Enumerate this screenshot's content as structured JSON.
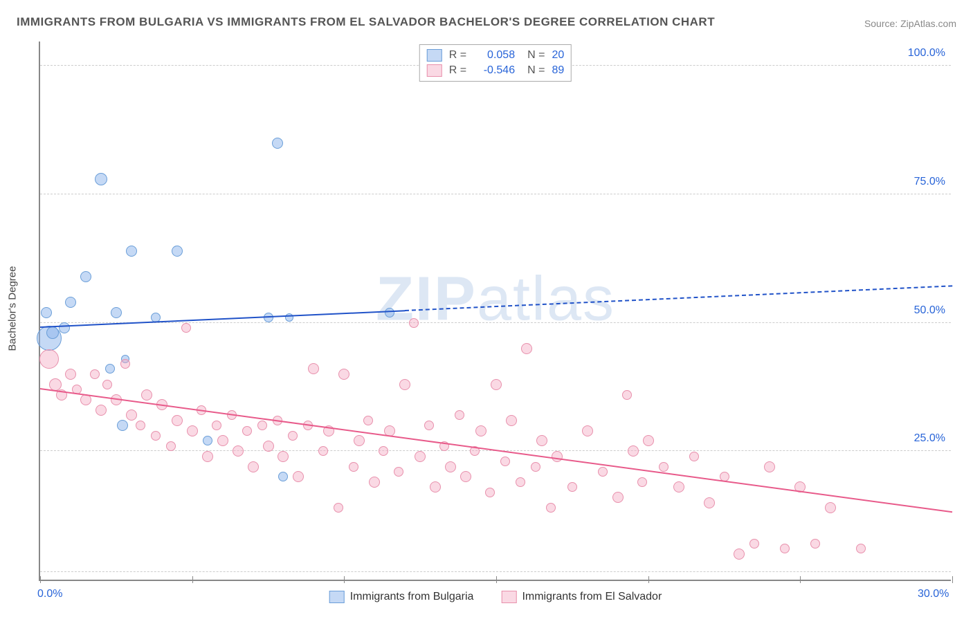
{
  "title": "IMMIGRANTS FROM BULGARIA VS IMMIGRANTS FROM EL SALVADOR BACHELOR'S DEGREE CORRELATION CHART",
  "source": "Source: ZipAtlas.com",
  "watermark_a": "ZIP",
  "watermark_b": "atlas",
  "y_title": "Bachelor's Degree",
  "chart": {
    "type": "scatter",
    "xlim": [
      0,
      30
    ],
    "ylim": [
      0,
      105
    ],
    "x_ticks": [
      0,
      5,
      10,
      15,
      20,
      25,
      30
    ],
    "x_tick_labels_shown": {
      "0": "0.0%",
      "30": "30.0%"
    },
    "y_gridlines": [
      1.5,
      25,
      50,
      75,
      100
    ],
    "y_labels": {
      "25": "25.0%",
      "50": "50.0%",
      "75": "75.0%",
      "100": "100.0%"
    },
    "background_color": "#ffffff",
    "grid_color": "#cccccc",
    "axis_color": "#888888",
    "series": [
      {
        "key": "bulgaria",
        "label": "Immigrants from Bulgaria",
        "fill": "rgba(140,180,235,0.5)",
        "stroke": "#6a9ed8",
        "trend_color": "#2052c8",
        "R": "0.058",
        "N": "20",
        "trend": {
          "x1": 0,
          "y1": 49,
          "x2": 30,
          "y2": 57,
          "solid_until_x": 12
        },
        "points": [
          {
            "x": 0.2,
            "y": 52,
            "r": 8
          },
          {
            "x": 0.3,
            "y": 47,
            "r": 18
          },
          {
            "x": 0.4,
            "y": 48,
            "r": 9
          },
          {
            "x": 0.8,
            "y": 49,
            "r": 8
          },
          {
            "x": 1.0,
            "y": 54,
            "r": 8
          },
          {
            "x": 1.5,
            "y": 59,
            "r": 8
          },
          {
            "x": 2.0,
            "y": 78,
            "r": 9
          },
          {
            "x": 2.3,
            "y": 41,
            "r": 7
          },
          {
            "x": 2.5,
            "y": 52,
            "r": 8
          },
          {
            "x": 2.7,
            "y": 30,
            "r": 8
          },
          {
            "x": 3.0,
            "y": 64,
            "r": 8
          },
          {
            "x": 3.8,
            "y": 51,
            "r": 7
          },
          {
            "x": 4.5,
            "y": 64,
            "r": 8
          },
          {
            "x": 5.5,
            "y": 27,
            "r": 7
          },
          {
            "x": 7.5,
            "y": 51,
            "r": 7
          },
          {
            "x": 7.8,
            "y": 85,
            "r": 8
          },
          {
            "x": 8.0,
            "y": 20,
            "r": 7
          },
          {
            "x": 8.2,
            "y": 51,
            "r": 6
          },
          {
            "x": 11.5,
            "y": 52,
            "r": 7
          },
          {
            "x": 2.8,
            "y": 43,
            "r": 6
          }
        ]
      },
      {
        "key": "elsalvador",
        "label": "Immigrants from El Salvador",
        "fill": "rgba(245,170,195,0.45)",
        "stroke": "#e890ac",
        "trend_color": "#e85a8a",
        "R": "-0.546",
        "N": "89",
        "trend": {
          "x1": 0,
          "y1": 37,
          "x2": 30,
          "y2": 13,
          "solid_until_x": 30
        },
        "points": [
          {
            "x": 0.3,
            "y": 43,
            "r": 14
          },
          {
            "x": 0.5,
            "y": 38,
            "r": 9
          },
          {
            "x": 0.7,
            "y": 36,
            "r": 8
          },
          {
            "x": 1.0,
            "y": 40,
            "r": 8
          },
          {
            "x": 1.2,
            "y": 37,
            "r": 7
          },
          {
            "x": 1.5,
            "y": 35,
            "r": 8
          },
          {
            "x": 1.8,
            "y": 40,
            "r": 7
          },
          {
            "x": 2.0,
            "y": 33,
            "r": 8
          },
          {
            "x": 2.2,
            "y": 38,
            "r": 7
          },
          {
            "x": 2.5,
            "y": 35,
            "r": 8
          },
          {
            "x": 2.8,
            "y": 42,
            "r": 7
          },
          {
            "x": 3.0,
            "y": 32,
            "r": 8
          },
          {
            "x": 3.3,
            "y": 30,
            "r": 7
          },
          {
            "x": 3.5,
            "y": 36,
            "r": 8
          },
          {
            "x": 3.8,
            "y": 28,
            "r": 7
          },
          {
            "x": 4.0,
            "y": 34,
            "r": 8
          },
          {
            "x": 4.3,
            "y": 26,
            "r": 7
          },
          {
            "x": 4.5,
            "y": 31,
            "r": 8
          },
          {
            "x": 4.8,
            "y": 49,
            "r": 7
          },
          {
            "x": 5.0,
            "y": 29,
            "r": 8
          },
          {
            "x": 5.3,
            "y": 33,
            "r": 7
          },
          {
            "x": 5.5,
            "y": 24,
            "r": 8
          },
          {
            "x": 5.8,
            "y": 30,
            "r": 7
          },
          {
            "x": 6.0,
            "y": 27,
            "r": 8
          },
          {
            "x": 6.3,
            "y": 32,
            "r": 7
          },
          {
            "x": 6.5,
            "y": 25,
            "r": 8
          },
          {
            "x": 6.8,
            "y": 29,
            "r": 7
          },
          {
            "x": 7.0,
            "y": 22,
            "r": 8
          },
          {
            "x": 7.3,
            "y": 30,
            "r": 7
          },
          {
            "x": 7.5,
            "y": 26,
            "r": 8
          },
          {
            "x": 7.8,
            "y": 31,
            "r": 7
          },
          {
            "x": 8.0,
            "y": 24,
            "r": 8
          },
          {
            "x": 8.3,
            "y": 28,
            "r": 7
          },
          {
            "x": 8.5,
            "y": 20,
            "r": 8
          },
          {
            "x": 8.8,
            "y": 30,
            "r": 7
          },
          {
            "x": 9.0,
            "y": 41,
            "r": 8
          },
          {
            "x": 9.3,
            "y": 25,
            "r": 7
          },
          {
            "x": 9.5,
            "y": 29,
            "r": 8
          },
          {
            "x": 9.8,
            "y": 14,
            "r": 7
          },
          {
            "x": 10.0,
            "y": 40,
            "r": 8
          },
          {
            "x": 10.3,
            "y": 22,
            "r": 7
          },
          {
            "x": 10.5,
            "y": 27,
            "r": 8
          },
          {
            "x": 10.8,
            "y": 31,
            "r": 7
          },
          {
            "x": 11.0,
            "y": 19,
            "r": 8
          },
          {
            "x": 11.3,
            "y": 25,
            "r": 7
          },
          {
            "x": 11.5,
            "y": 29,
            "r": 8
          },
          {
            "x": 11.8,
            "y": 21,
            "r": 7
          },
          {
            "x": 12.0,
            "y": 38,
            "r": 8
          },
          {
            "x": 12.3,
            "y": 50,
            "r": 7
          },
          {
            "x": 12.5,
            "y": 24,
            "r": 8
          },
          {
            "x": 12.8,
            "y": 30,
            "r": 7
          },
          {
            "x": 13.0,
            "y": 18,
            "r": 8
          },
          {
            "x": 13.3,
            "y": 26,
            "r": 7
          },
          {
            "x": 13.5,
            "y": 22,
            "r": 8
          },
          {
            "x": 13.8,
            "y": 32,
            "r": 7
          },
          {
            "x": 14.0,
            "y": 20,
            "r": 8
          },
          {
            "x": 14.3,
            "y": 25,
            "r": 7
          },
          {
            "x": 14.5,
            "y": 29,
            "r": 8
          },
          {
            "x": 14.8,
            "y": 17,
            "r": 7
          },
          {
            "x": 15.0,
            "y": 38,
            "r": 8
          },
          {
            "x": 15.3,
            "y": 23,
            "r": 7
          },
          {
            "x": 15.5,
            "y": 31,
            "r": 8
          },
          {
            "x": 15.8,
            "y": 19,
            "r": 7
          },
          {
            "x": 16.0,
            "y": 45,
            "r": 8
          },
          {
            "x": 16.3,
            "y": 22,
            "r": 7
          },
          {
            "x": 16.5,
            "y": 27,
            "r": 8
          },
          {
            "x": 16.8,
            "y": 14,
            "r": 7
          },
          {
            "x": 17.0,
            "y": 24,
            "r": 8
          },
          {
            "x": 17.5,
            "y": 18,
            "r": 7
          },
          {
            "x": 18.0,
            "y": 29,
            "r": 8
          },
          {
            "x": 18.5,
            "y": 21,
            "r": 7
          },
          {
            "x": 19.0,
            "y": 16,
            "r": 8
          },
          {
            "x": 19.3,
            "y": 36,
            "r": 7
          },
          {
            "x": 19.5,
            "y": 25,
            "r": 8
          },
          {
            "x": 19.8,
            "y": 19,
            "r": 7
          },
          {
            "x": 20.0,
            "y": 27,
            "r": 8
          },
          {
            "x": 20.5,
            "y": 22,
            "r": 7
          },
          {
            "x": 21.0,
            "y": 18,
            "r": 8
          },
          {
            "x": 21.5,
            "y": 24,
            "r": 7
          },
          {
            "x": 22.0,
            "y": 15,
            "r": 8
          },
          {
            "x": 22.5,
            "y": 20,
            "r": 7
          },
          {
            "x": 23.0,
            "y": 5,
            "r": 8
          },
          {
            "x": 23.5,
            "y": 7,
            "r": 7
          },
          {
            "x": 24.0,
            "y": 22,
            "r": 8
          },
          {
            "x": 24.5,
            "y": 6,
            "r": 7
          },
          {
            "x": 25.0,
            "y": 18,
            "r": 8
          },
          {
            "x": 25.5,
            "y": 7,
            "r": 7
          },
          {
            "x": 26.0,
            "y": 14,
            "r": 8
          },
          {
            "x": 27.0,
            "y": 6,
            "r": 7
          }
        ]
      }
    ]
  },
  "legend_labels": {
    "R": "R =",
    "N": "N ="
  }
}
